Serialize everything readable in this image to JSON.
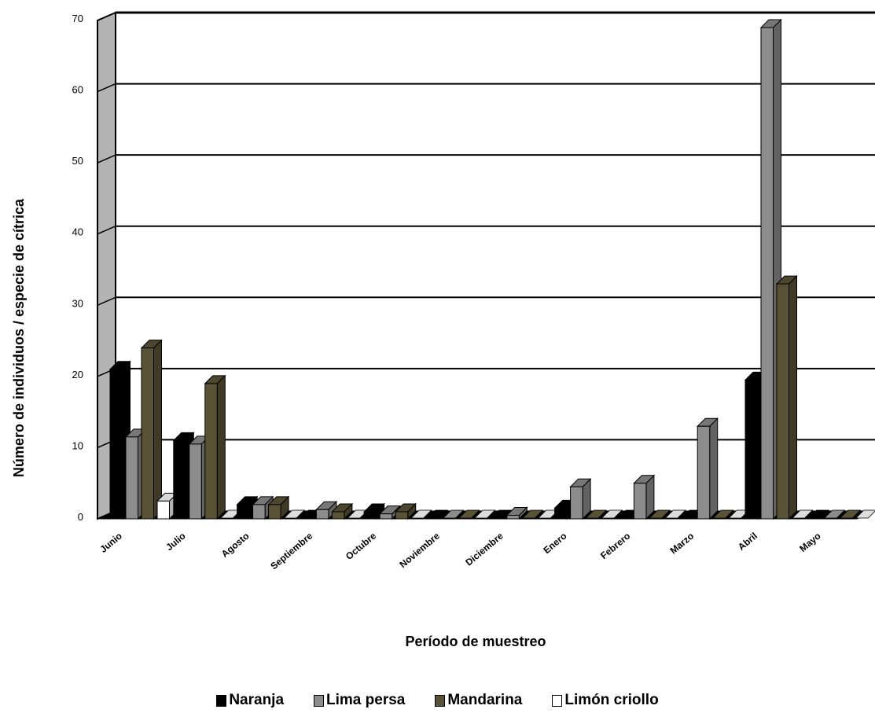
{
  "chart_data": {
    "type": "bar",
    "title": "",
    "xlabel": "Período de muestreo",
    "ylabel": "Número de individuos  / especie de cítrica",
    "ylim": [
      0,
      70
    ],
    "yticks": [
      "0",
      "10",
      "20",
      "30",
      "40",
      "50",
      "60",
      "70"
    ],
    "grid": true,
    "legend_position": "bottom",
    "categories": [
      "Junio",
      "Julio",
      "Agosto",
      "Septiembre",
      "Octubre",
      "Noviembre",
      "Diciembre",
      "Enero",
      "Febrero",
      "Marzo",
      "Abril",
      "Mayo"
    ],
    "series": [
      {
        "name": "Naranja",
        "color": "#000000",
        "values": [
          21,
          11,
          2,
          0,
          1,
          0,
          0,
          1.5,
          0,
          0,
          19.5,
          0
        ]
      },
      {
        "name": "Lima persa",
        "color": "#8c8c8c",
        "values": [
          11.5,
          10.5,
          2,
          1.3,
          0.7,
          0,
          0.5,
          4.5,
          5,
          13,
          69,
          0
        ]
      },
      {
        "name": "Mandarina",
        "color": "#5a5236",
        "values": [
          24,
          19,
          2,
          1,
          1,
          0,
          0,
          0,
          0,
          0,
          33,
          0
        ]
      },
      {
        "name": "Limón criollo",
        "color": "#ffffff",
        "values": [
          2.5,
          0,
          0,
          0,
          0,
          0,
          0,
          0,
          0,
          0,
          0,
          0
        ]
      }
    ]
  }
}
